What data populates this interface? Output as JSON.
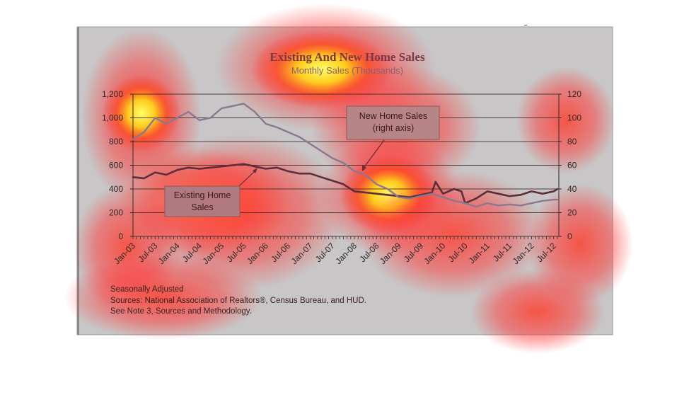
{
  "chart_data": {
    "type": "line",
    "title": "Existing And New Home Sales",
    "subtitle": "Monthly Sales (Thousands)",
    "x_tick_labels": [
      "Jan-03",
      "Jul-03",
      "Jan-04",
      "Jul-04",
      "Jan-05",
      "Jul-05",
      "Jan-06",
      "Jul-06",
      "Jan-07",
      "Jul-07",
      "Jan-08",
      "Jul-08",
      "Jan-09",
      "Jul-09",
      "Jan-10",
      "Jul-10",
      "Jan-11",
      "Jul-11",
      "Jan-12",
      "Jul-12"
    ],
    "y_left": {
      "ticks": [
        "0",
        "200",
        "400",
        "600",
        "800",
        "1,000",
        "1,200"
      ],
      "ylim": [
        0,
        1200
      ]
    },
    "y_right": {
      "ticks": [
        "0",
        "20",
        "40",
        "60",
        "80",
        "100",
        "120"
      ],
      "ylim": [
        0,
        120
      ]
    },
    "grid": true,
    "series": [
      {
        "name": "Existing Home Sales",
        "axis": "left",
        "color": "#5a2e3a",
        "x": [
          "Jan-03",
          "Apr-03",
          "Jul-03",
          "Oct-03",
          "Jan-04",
          "Apr-04",
          "Jul-04",
          "Oct-04",
          "Jan-05",
          "Apr-05",
          "Jul-05",
          "Oct-05",
          "Jan-06",
          "Apr-06",
          "Jul-06",
          "Oct-06",
          "Jan-07",
          "Apr-07",
          "Jul-07",
          "Oct-07",
          "Jan-08",
          "Apr-08",
          "Jul-08",
          "Oct-08",
          "Jan-09",
          "Apr-09",
          "Jul-09",
          "Oct-09",
          "Nov-09",
          "Jan-10",
          "Apr-10",
          "Jun-10",
          "Jul-10",
          "Oct-10",
          "Jan-11",
          "Apr-11",
          "Jul-11",
          "Oct-11",
          "Jan-12",
          "Apr-12",
          "Jul-12",
          "Aug-12"
        ],
        "y": [
          500,
          490,
          540,
          520,
          560,
          580,
          570,
          580,
          590,
          600,
          610,
          590,
          570,
          580,
          550,
          530,
          530,
          500,
          470,
          440,
          380,
          370,
          360,
          350,
          340,
          330,
          350,
          370,
          460,
          360,
          400,
          380,
          280,
          320,
          380,
          360,
          340,
          350,
          380,
          360,
          380,
          400
        ]
      },
      {
        "name": "New Home Sales (right axis)",
        "axis": "right",
        "color": "#8a7890",
        "x": [
          "Jan-03",
          "Apr-03",
          "Jul-03",
          "Oct-03",
          "Jan-04",
          "Apr-04",
          "Jul-04",
          "Oct-04",
          "Jan-05",
          "Apr-05",
          "Jul-05",
          "Oct-05",
          "Jan-06",
          "Apr-06",
          "Jul-06",
          "Oct-06",
          "Jan-07",
          "Apr-07",
          "Jul-07",
          "Oct-07",
          "Jan-08",
          "Apr-08",
          "Jul-08",
          "Oct-08",
          "Jan-09",
          "Apr-09",
          "Jul-09",
          "Oct-09",
          "Jan-10",
          "Apr-10",
          "Jul-10",
          "Oct-10",
          "Jan-11",
          "Apr-11",
          "Jul-11",
          "Oct-11",
          "Jan-12",
          "Apr-12",
          "Jul-12",
          "Aug-12"
        ],
        "y": [
          82,
          88,
          100,
          95,
          100,
          105,
          98,
          100,
          108,
          110,
          112,
          105,
          95,
          92,
          88,
          84,
          78,
          72,
          66,
          62,
          55,
          52,
          44,
          40,
          33,
          32,
          34,
          36,
          33,
          30,
          28,
          25,
          28,
          26,
          27,
          26,
          28,
          30,
          31,
          31
        ]
      }
    ],
    "callouts": [
      {
        "lines": [
          "New Home Sales",
          "(right axis)"
        ]
      },
      {
        "lines": [
          "Existing Home",
          "Sales"
        ]
      }
    ],
    "notes": [
      "Seasonally Adjusted",
      "Sources:  National Association of Realtors®, Census Bureau, and HUD.",
      "See Note 3, Sources and Methodology."
    ]
  }
}
